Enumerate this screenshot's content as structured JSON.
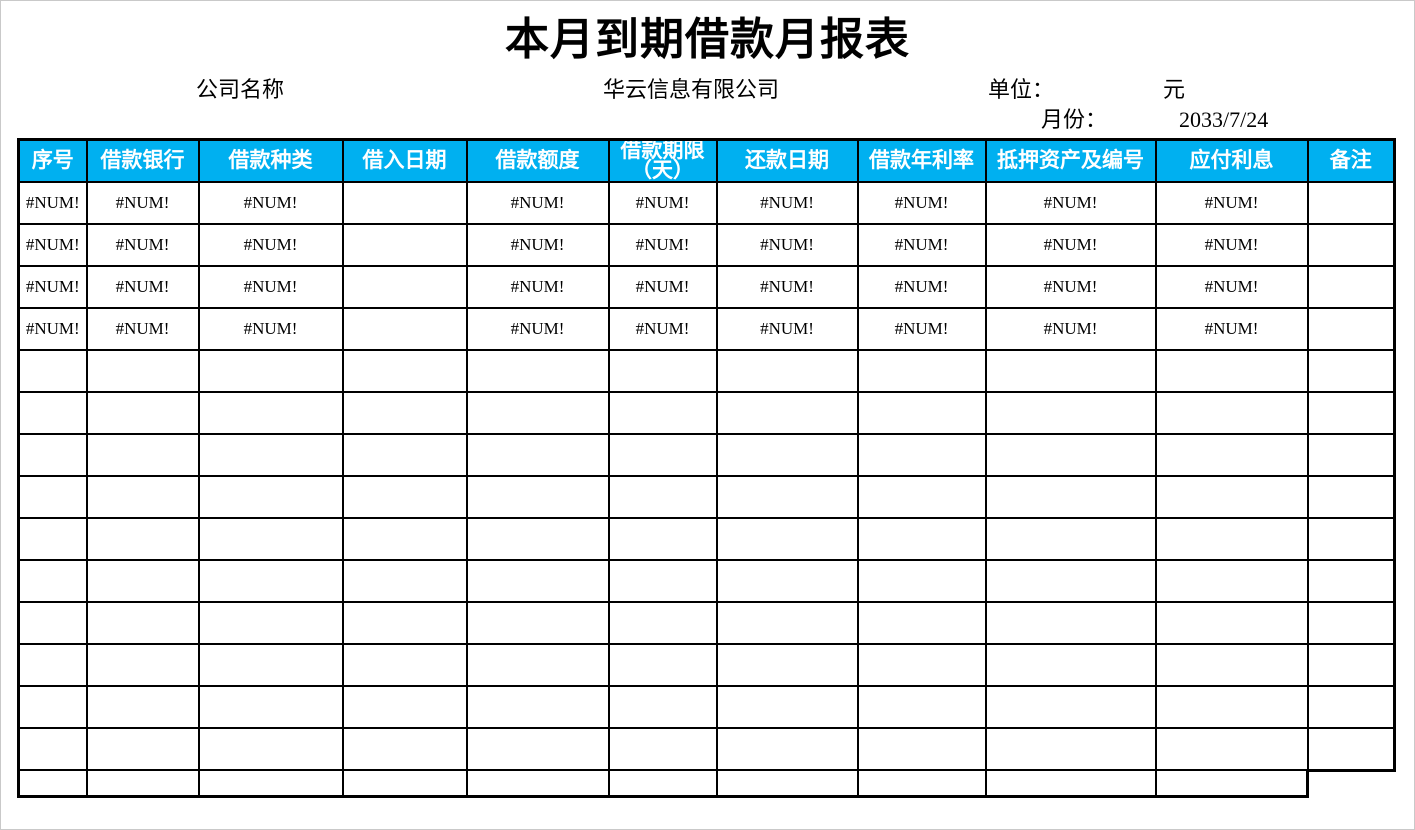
{
  "page": {
    "title": "本月到期借款月报表"
  },
  "meta": {
    "company_label": "公司名称",
    "company_value": "华云信息有限公司",
    "unit_label": "单位：",
    "unit_value": "元",
    "month_label": "月份：",
    "month_value": "2033/7/24"
  },
  "table": {
    "headers": [
      "序号",
      "借款银行",
      "借款种类",
      "借入日期",
      "借款额度",
      "借款期限\n（天）",
      "还款日期",
      "借款年利率",
      "抵押资产及编号",
      "应付利息",
      "备注"
    ],
    "error_value": "#NUM!",
    "rows": [
      [
        "#NUM!",
        "#NUM!",
        "#NUM!",
        "",
        "#NUM!",
        "#NUM!",
        "#NUM!",
        "#NUM!",
        "#NUM!",
        "#NUM!",
        ""
      ],
      [
        "#NUM!",
        "#NUM!",
        "#NUM!",
        "",
        "#NUM!",
        "#NUM!",
        "#NUM!",
        "#NUM!",
        "#NUM!",
        "#NUM!",
        ""
      ],
      [
        "#NUM!",
        "#NUM!",
        "#NUM!",
        "",
        "#NUM!",
        "#NUM!",
        "#NUM!",
        "#NUM!",
        "#NUM!",
        "#NUM!",
        ""
      ],
      [
        "#NUM!",
        "#NUM!",
        "#NUM!",
        "",
        "#NUM!",
        "#NUM!",
        "#NUM!",
        "#NUM!",
        "#NUM!",
        "#NUM!",
        ""
      ],
      [
        "",
        "",
        "",
        "",
        "",
        "",
        "",
        "",
        "",
        "",
        ""
      ],
      [
        "",
        "",
        "",
        "",
        "",
        "",
        "",
        "",
        "",
        "",
        ""
      ],
      [
        "",
        "",
        "",
        "",
        "",
        "",
        "",
        "",
        "",
        "",
        ""
      ],
      [
        "",
        "",
        "",
        "",
        "",
        "",
        "",
        "",
        "",
        "",
        ""
      ],
      [
        "",
        "",
        "",
        "",
        "",
        "",
        "",
        "",
        "",
        "",
        ""
      ],
      [
        "",
        "",
        "",
        "",
        "",
        "",
        "",
        "",
        "",
        "",
        ""
      ],
      [
        "",
        "",
        "",
        "",
        "",
        "",
        "",
        "",
        "",
        "",
        ""
      ],
      [
        "",
        "",
        "",
        "",
        "",
        "",
        "",
        "",
        "",
        "",
        ""
      ],
      [
        "",
        "",
        "",
        "",
        "",
        "",
        "",
        "",
        "",
        "",
        ""
      ],
      [
        "",
        "",
        "",
        "",
        "",
        "",
        "",
        "",
        "",
        "",
        ""
      ],
      [
        "",
        "",
        "",
        "",
        "",
        "",
        "",
        "",
        "",
        "",
        ""
      ]
    ]
  },
  "colors": {
    "header_bg": "#00B0F0",
    "header_text": "#FFFFFF",
    "border": "#000000"
  }
}
